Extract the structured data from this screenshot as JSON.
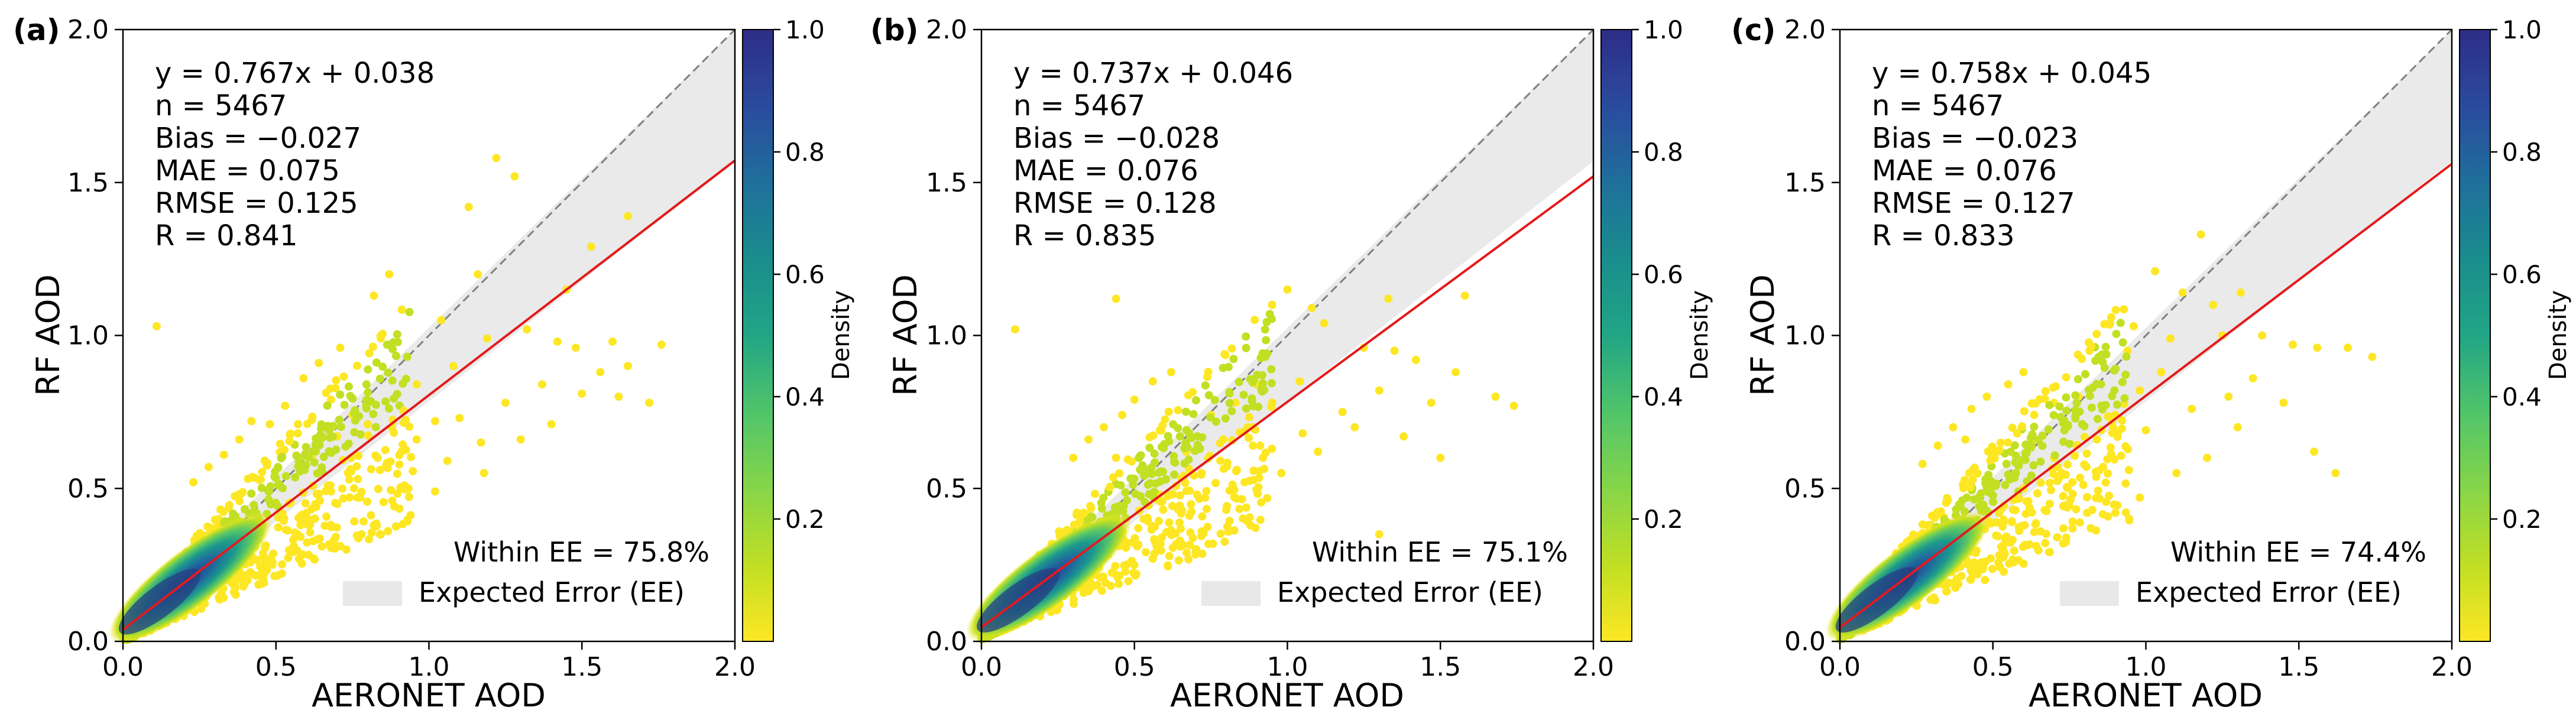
{
  "chart_data": [
    {
      "type": "scatter",
      "panel_label": "(a)",
      "xlabel": "AERONET AOD",
      "ylabel": "RF AOD",
      "xlim": [
        0,
        2.0
      ],
      "ylim": [
        0,
        2.0
      ],
      "x_ticks": [
        "0.0",
        "0.5",
        "1.0",
        "1.5",
        "2.0"
      ],
      "y_ticks": [
        "0.0",
        "0.5",
        "1.0",
        "1.5",
        "2.0"
      ],
      "fit": {
        "slope": 0.767,
        "intercept": 0.038,
        "color": "#e41a1c"
      },
      "stats": [
        "y = 0.767x + 0.038",
        "n = 5467",
        "Bias = −0.027",
        "MAE = 0.075",
        "RMSE = 0.125",
        "R = 0.841"
      ],
      "legend": {
        "within": "Within EE = 75.8%",
        "ee": "Expected Error (EE)",
        "placement": "lower-right"
      },
      "colorbar": {
        "label": "Density",
        "ticks": [
          "0.2",
          "0.4",
          "0.6",
          "0.8",
          "1.0"
        ]
      },
      "points": [
        [
          0.11,
          1.03
        ],
        [
          1.22,
          1.58
        ],
        [
          1.28,
          1.52
        ],
        [
          1.13,
          1.42
        ],
        [
          1.65,
          1.39
        ],
        [
          0.82,
          1.13
        ],
        [
          0.87,
          1.2
        ],
        [
          1.04,
          1.05
        ],
        [
          1.16,
          1.2
        ],
        [
          1.45,
          1.15
        ],
        [
          1.53,
          1.29
        ],
        [
          1.32,
          1.02
        ],
        [
          1.42,
          0.98
        ],
        [
          1.48,
          0.96
        ],
        [
          1.6,
          0.98
        ],
        [
          1.72,
          0.78
        ],
        [
          1.65,
          0.9
        ],
        [
          1.56,
          0.88
        ],
        [
          1.5,
          0.81
        ],
        [
          1.62,
          0.8
        ],
        [
          1.76,
          0.97
        ],
        [
          1.37,
          0.84
        ],
        [
          1.25,
          0.78
        ],
        [
          1.1,
          0.73
        ],
        [
          1.17,
          0.65
        ],
        [
          1.06,
          0.59
        ],
        [
          0.96,
          0.66
        ],
        [
          0.92,
          0.51
        ],
        [
          0.88,
          0.46
        ],
        [
          0.82,
          0.38
        ],
        [
          0.78,
          0.35
        ],
        [
          1.02,
          0.49
        ],
        [
          1.18,
          0.55
        ],
        [
          1.3,
          0.66
        ],
        [
          1.4,
          0.71
        ],
        [
          0.71,
          0.96
        ],
        [
          0.64,
          0.91
        ],
        [
          0.59,
          0.86
        ],
        [
          0.68,
          0.79
        ],
        [
          0.75,
          0.74
        ],
        [
          0.96,
          0.84
        ],
        [
          1.08,
          0.9
        ],
        [
          1.19,
          0.99
        ],
        [
          0.91,
          0.62
        ],
        [
          1.02,
          0.72
        ],
        [
          0.84,
          0.56
        ],
        [
          0.68,
          0.49
        ],
        [
          0.6,
          0.42
        ],
        [
          0.53,
          0.77
        ],
        [
          0.48,
          0.71
        ],
        [
          0.42,
          0.72
        ],
        [
          0.38,
          0.66
        ],
        [
          0.33,
          0.61
        ],
        [
          0.28,
          0.57
        ],
        [
          0.23,
          0.52
        ],
        [
          0.57,
          0.35
        ],
        [
          0.65,
          0.31
        ],
        [
          0.73,
          0.3
        ],
        [
          0.62,
          0.61
        ],
        [
          0.7,
          0.67
        ],
        [
          0.8,
          0.71
        ]
      ],
      "ee_band": [
        [
          0,
          0.05
        ],
        [
          2.0,
          2.0
        ],
        [
          2.0,
          1.57
        ],
        [
          0,
          0.0
        ]
      ]
    },
    {
      "type": "scatter",
      "panel_label": "(b)",
      "xlabel": "AERONET AOD",
      "ylabel": "RF AOD",
      "xlim": [
        0,
        2.0
      ],
      "ylim": [
        0,
        2.0
      ],
      "x_ticks": [
        "0.0",
        "0.5",
        "1.0",
        "1.5",
        "2.0"
      ],
      "y_ticks": [
        "0.0",
        "0.5",
        "1.0",
        "1.5",
        "2.0"
      ],
      "fit": {
        "slope": 0.737,
        "intercept": 0.046,
        "color": "#e41a1c"
      },
      "stats": [
        "y = 0.737x + 0.046",
        "n = 5467",
        "Bias = −0.028",
        "MAE = 0.076",
        "RMSE = 0.128",
        "R = 0.835"
      ],
      "legend": {
        "within": "Within EE = 75.1%",
        "ee": "Expected Error (EE)",
        "placement": "lower-right"
      },
      "colorbar": {
        "label": "Density",
        "ticks": [
          "0.2",
          "0.4",
          "0.6",
          "0.8",
          "1.0"
        ]
      },
      "points": [
        [
          0.11,
          1.02
        ],
        [
          0.44,
          1.12
        ],
        [
          1.0,
          1.15
        ],
        [
          0.95,
          1.1
        ],
        [
          1.08,
          1.09
        ],
        [
          1.12,
          1.04
        ],
        [
          1.33,
          1.12
        ],
        [
          1.58,
          1.13
        ],
        [
          1.25,
          0.96
        ],
        [
          1.35,
          0.95
        ],
        [
          1.42,
          0.92
        ],
        [
          1.55,
          0.88
        ],
        [
          1.68,
          0.8
        ],
        [
          1.74,
          0.77
        ],
        [
          1.47,
          0.78
        ],
        [
          1.3,
          0.82
        ],
        [
          1.18,
          0.75
        ],
        [
          1.05,
          0.68
        ],
        [
          0.92,
          0.6
        ],
        [
          0.86,
          0.52
        ],
        [
          0.8,
          0.43
        ],
        [
          0.72,
          0.36
        ],
        [
          0.65,
          0.31
        ],
        [
          0.98,
          0.55
        ],
        [
          1.1,
          0.62
        ],
        [
          1.22,
          0.7
        ],
        [
          1.38,
          0.67
        ],
        [
          1.5,
          0.6
        ],
        [
          1.3,
          0.35
        ],
        [
          0.62,
          0.88
        ],
        [
          0.56,
          0.85
        ],
        [
          0.5,
          0.79
        ],
        [
          0.46,
          0.74
        ],
        [
          0.4,
          0.7
        ],
        [
          0.35,
          0.66
        ],
        [
          0.3,
          0.6
        ],
        [
          0.75,
          0.74
        ],
        [
          0.83,
          0.78
        ],
        [
          0.9,
          0.84
        ],
        [
          0.67,
          0.62
        ],
        [
          0.72,
          0.55
        ],
        [
          0.58,
          0.48
        ],
        [
          0.53,
          0.4
        ],
        [
          0.59,
          0.34
        ],
        [
          0.79,
          0.66
        ],
        [
          0.87,
          0.7
        ],
        [
          0.95,
          0.78
        ],
        [
          1.04,
          0.85
        ],
        [
          0.44,
          0.6
        ]
      ],
      "ee_band": [
        [
          0,
          0.05
        ],
        [
          2.0,
          2.0
        ],
        [
          2.0,
          1.57
        ],
        [
          0,
          0.0
        ]
      ]
    },
    {
      "type": "scatter",
      "panel_label": "(c)",
      "xlabel": "AERONET AOD",
      "ylabel": "RF AOD",
      "xlim": [
        0,
        2.0
      ],
      "ylim": [
        0,
        2.0
      ],
      "x_ticks": [
        "0.0",
        "0.5",
        "1.0",
        "1.5",
        "2.0"
      ],
      "y_ticks": [
        "0.0",
        "0.5",
        "1.0",
        "1.5",
        "2.0"
      ],
      "fit": {
        "slope": 0.758,
        "intercept": 0.045,
        "color": "#e41a1c"
      },
      "stats": [
        "y = 0.758x + 0.045",
        "n = 5467",
        "Bias = −0.023",
        "MAE = 0.076",
        "RMSE = 0.127",
        "R = 0.833"
      ],
      "legend": {
        "within": "Within EE = 74.4%",
        "ee": "Expected Error (EE)",
        "placement": "lower-right"
      },
      "colorbar": {
        "label": "Density",
        "ticks": [
          "0.2",
          "0.4",
          "0.6",
          "0.8",
          "1.0"
        ]
      },
      "points": [
        [
          1.18,
          1.33
        ],
        [
          1.03,
          1.21
        ],
        [
          1.12,
          1.14
        ],
        [
          1.22,
          1.1
        ],
        [
          1.31,
          1.14
        ],
        [
          0.96,
          1.03
        ],
        [
          1.08,
          0.99
        ],
        [
          1.25,
          1.0
        ],
        [
          1.38,
          1.0
        ],
        [
          1.48,
          0.97
        ],
        [
          1.56,
          0.96
        ],
        [
          1.66,
          0.96
        ],
        [
          1.74,
          0.93
        ],
        [
          1.05,
          0.88
        ],
        [
          0.98,
          0.82
        ],
        [
          0.9,
          0.74
        ],
        [
          0.84,
          0.66
        ],
        [
          1.15,
          0.76
        ],
        [
          1.27,
          0.8
        ],
        [
          1.35,
          0.86
        ],
        [
          1.45,
          0.78
        ],
        [
          1.55,
          0.62
        ],
        [
          1.62,
          0.55
        ],
        [
          1.2,
          0.6
        ],
        [
          1.1,
          0.55
        ],
        [
          0.98,
          0.47
        ],
        [
          0.9,
          0.42
        ],
        [
          0.82,
          0.37
        ],
        [
          0.73,
          0.32
        ],
        [
          0.6,
          0.88
        ],
        [
          0.55,
          0.84
        ],
        [
          0.48,
          0.8
        ],
        [
          0.43,
          0.76
        ],
        [
          0.37,
          0.7
        ],
        [
          0.32,
          0.64
        ],
        [
          0.27,
          0.58
        ],
        [
          0.7,
          0.78
        ],
        [
          0.78,
          0.8
        ],
        [
          0.64,
          0.66
        ],
        [
          0.7,
          0.6
        ],
        [
          0.6,
          0.5
        ],
        [
          0.52,
          0.42
        ],
        [
          0.76,
          0.52
        ],
        [
          0.86,
          0.57
        ],
        [
          1.0,
          0.69
        ],
        [
          1.3,
          0.7
        ],
        [
          0.41,
          0.66
        ],
        [
          0.94,
          0.95
        ]
      ],
      "ee_band": [
        [
          0,
          0.05
        ],
        [
          2.0,
          2.0
        ],
        [
          2.0,
          1.57
        ],
        [
          0,
          0.0
        ]
      ]
    }
  ]
}
